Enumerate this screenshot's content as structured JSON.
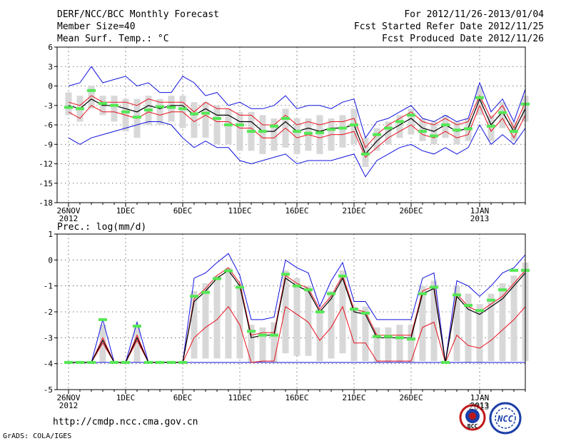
{
  "header": {
    "title": "DERF/NCC/BCC Monthly Forecast",
    "member_size": "Member Size=40",
    "variable": "Mean Surf. Temp.: °C",
    "forecast_period": "For 2012/11/26-2013/01/04",
    "started_refer": "Fcst Started Refer Date 2012/11/25",
    "produced": "Fcst Produced Date 2012/11/26"
  },
  "footer": {
    "url": "http://cmdp.ncc.cma.gov.cn",
    "grads": "GrADS: COLA/IGES",
    "logo_bcc": "BCC",
    "logo_ncc": "NCC",
    "logo_year_overlap": "2013"
  },
  "colors": {
    "median": "#000000",
    "ci": "#e8101c",
    "extreme": "#1010e0",
    "box": "#d8d8d8",
    "marker": "#54e854"
  },
  "chart_data": [
    {
      "type": "box-line",
      "title": "Mean Surf. Temp.: °C",
      "ylim": [
        -18,
        6
      ],
      "yticks": [
        6,
        3,
        0,
        -3,
        -6,
        -9,
        -12,
        -15,
        -18
      ],
      "xticks": [
        {
          "day": 0,
          "label": "26NOV",
          "sub": "2012"
        },
        {
          "day": 5,
          "label": "1DEC",
          "sub": ""
        },
        {
          "day": 10,
          "label": "6DEC",
          "sub": ""
        },
        {
          "day": 15,
          "label": "11DEC",
          "sub": ""
        },
        {
          "day": 20,
          "label": "16DEC",
          "sub": ""
        },
        {
          "day": 25,
          "label": "21DEC",
          "sub": ""
        },
        {
          "day": 30,
          "label": "26DEC",
          "sub": ""
        },
        {
          "day": 36,
          "label": "1JAN",
          "sub": "2013"
        }
      ],
      "days": 40,
      "median": [
        -3.0,
        -3.5,
        -2.0,
        -3.0,
        -3.0,
        -3.5,
        -4.0,
        -3.0,
        -3.5,
        -3.0,
        -3.0,
        -4.5,
        -3.5,
        -4.5,
        -4.5,
        -5.5,
        -5.5,
        -7.0,
        -7.0,
        -5.5,
        -7.0,
        -6.5,
        -7.0,
        -6.5,
        -6.5,
        -6.0,
        -10.5,
        -8.5,
        -7.0,
        -6.0,
        -5.0,
        -6.5,
        -7.0,
        -6.0,
        -7.0,
        -6.5,
        -2.0,
        -6.0,
        -4.0,
        -7.0,
        -3.5
      ],
      "ci_upper": [
        -2.5,
        -3.0,
        -1.5,
        -2.5,
        -2.5,
        -2.5,
        -3.0,
        -2.0,
        -2.5,
        -2.5,
        -2.5,
        -4.0,
        -2.5,
        -3.5,
        -3.5,
        -4.5,
        -4.5,
        -6.0,
        -6.0,
        -4.5,
        -6.0,
        -5.5,
        -6.0,
        -5.5,
        -5.5,
        -5.0,
        -9.5,
        -7.5,
        -6.0,
        -5.0,
        -4.0,
        -5.5,
        -6.0,
        -5.0,
        -6.0,
        -5.5,
        -1.5,
        -5.0,
        -3.0,
        -6.5,
        -2.5
      ],
      "ci_lower": [
        -4.0,
        -5.0,
        -3.0,
        -4.0,
        -4.0,
        -4.5,
        -5.0,
        -4.0,
        -4.5,
        -4.0,
        -4.0,
        -5.5,
        -4.5,
        -5.5,
        -5.5,
        -6.5,
        -6.5,
        -8.0,
        -8.0,
        -6.5,
        -8.0,
        -7.5,
        -8.0,
        -7.5,
        -7.5,
        -7.0,
        -11.0,
        -9.5,
        -8.0,
        -7.0,
        -6.0,
        -7.5,
        -8.0,
        -7.0,
        -8.0,
        -7.5,
        -3.0,
        -7.0,
        -5.0,
        -8.0,
        -4.5
      ],
      "max": [
        0,
        0.5,
        3.0,
        0.5,
        1.0,
        1.5,
        0,
        0.5,
        -1.0,
        -1.0,
        1.5,
        0.5,
        -1.5,
        -1.0,
        -3.0,
        -2.5,
        -3.5,
        -3.5,
        -3.0,
        -1.5,
        -3.5,
        -3.0,
        -3.0,
        -3.5,
        -2.5,
        -2.0,
        -8.0,
        -5.5,
        -5.0,
        -4.0,
        -3.0,
        -5.0,
        -5.5,
        -4.5,
        -5.5,
        -5.0,
        0.5,
        -4.0,
        -2.0,
        -5.5,
        -0.5
      ],
      "min": [
        -8.0,
        -9.0,
        -8.0,
        -7.5,
        -7.0,
        -6.5,
        -6.0,
        -5.5,
        -5.5,
        -6.0,
        -8.0,
        -9.5,
        -8.5,
        -9.5,
        -9.5,
        -11.5,
        -12.0,
        -11.5,
        -11.0,
        -10.5,
        -12.0,
        -11.5,
        -11.5,
        -11.5,
        -11.0,
        -10.5,
        -14.0,
        -11.5,
        -10.5,
        -9.5,
        -9.0,
        -10.0,
        -10.5,
        -9.5,
        -10.5,
        -9.5,
        -6.0,
        -9.0,
        -7.5,
        -9.0,
        -6.5
      ],
      "box_top": [
        -1.0,
        -1.5,
        0,
        -1.5,
        -1.5,
        -2.0,
        -2.0,
        -1.5,
        -2.0,
        -1.5,
        -1.5,
        -2.5,
        -2.5,
        -3.0,
        -3.5,
        -4.0,
        -4.0,
        -4.5,
        -5.0,
        -3.5,
        -5.0,
        -5.0,
        -4.5,
        -5.0,
        -4.5,
        -3.5,
        -8.0,
        -6.5,
        -5.5,
        -4.5,
        -3.5,
        -5.0,
        -5.5,
        -4.5,
        -5.5,
        -5.0,
        0,
        -4.5,
        -2.5,
        -5.5,
        -1.5
      ],
      "box_bottom": [
        -4.5,
        -5.5,
        -3.5,
        -4.5,
        -5.5,
        -7.0,
        -8.0,
        -6.0,
        -6.0,
        -5.5,
        -6.5,
        -8.0,
        -8.0,
        -9.0,
        -9.0,
        -10.0,
        -10.0,
        -10.5,
        -10.0,
        -9.5,
        -10.5,
        -10.0,
        -10.5,
        -10.0,
        -9.5,
        -9.0,
        -12.5,
        -10.0,
        -9.0,
        -8.0,
        -7.5,
        -8.5,
        -9.0,
        -8.0,
        -9.0,
        -8.5,
        -4.5,
        -8.5,
        -6.5,
        -8.5,
        -5.5
      ],
      "markers": [
        -3.3,
        -3.5,
        -0.7,
        -2.7,
        -3.0,
        -4.0,
        -4.8,
        -3.7,
        -3.2,
        -3.3,
        -3.5,
        -4.3,
        -4.2,
        -5.0,
        -6.0,
        -6.0,
        -7.0,
        -7.0,
        -6.2,
        -5.0,
        -7.0,
        -7.3,
        -7.2,
        -6.7,
        -6.5,
        -6.0,
        -10.5,
        -7.5,
        -6.5,
        -5.5,
        -4.5,
        -7.0,
        -7.7,
        -6.0,
        -6.8,
        -6.6,
        -1.8,
        -6.2,
        -4.1,
        -7.0,
        -2.8
      ]
    },
    {
      "type": "box-line",
      "title": "Prec.: log(mm/d)",
      "ylim": [
        -5,
        1
      ],
      "yticks": [
        1,
        0,
        -1,
        -2,
        -3,
        -4,
        -5
      ],
      "xticks": [
        {
          "day": 0,
          "label": "26NOV",
          "sub": "2012"
        },
        {
          "day": 5,
          "label": "1DEC",
          "sub": ""
        },
        {
          "day": 10,
          "label": "6DEC",
          "sub": ""
        },
        {
          "day": 15,
          "label": "11DEC",
          "sub": ""
        },
        {
          "day": 20,
          "label": "16DEC",
          "sub": ""
        },
        {
          "day": 25,
          "label": "21DEC",
          "sub": ""
        },
        {
          "day": 30,
          "label": "26DEC",
          "sub": ""
        },
        {
          "day": 36,
          "label": "1JAN",
          "sub": "2013"
        }
      ],
      "days": 40,
      "median": [
        -3.95,
        -3.95,
        -3.95,
        -3.1,
        -3.95,
        -3.95,
        -3.0,
        -3.95,
        -3.95,
        -3.95,
        -3.95,
        -1.6,
        -1.2,
        -0.7,
        -0.4,
        -1.0,
        -3.0,
        -2.9,
        -2.9,
        -0.7,
        -1.0,
        -1.2,
        -2.0,
        -1.5,
        -0.7,
        -2.0,
        -2.1,
        -3.0,
        -3.0,
        -3.0,
        -3.0,
        -1.3,
        -1.1,
        -3.95,
        -1.4,
        -1.9,
        -2.1,
        -1.8,
        -1.5,
        -1.0,
        -0.5
      ],
      "ci_upper": [
        -3.95,
        -3.95,
        -3.95,
        -3.0,
        -3.95,
        -3.95,
        -2.9,
        -3.95,
        -3.95,
        -3.95,
        -3.95,
        -1.5,
        -1.1,
        -0.6,
        -0.3,
        -0.9,
        -2.9,
        -2.8,
        -2.8,
        -0.6,
        -0.9,
        -1.1,
        -1.9,
        -1.4,
        -0.6,
        -1.9,
        -2.0,
        -2.9,
        -2.9,
        -2.9,
        -2.9,
        -1.2,
        -1.0,
        -3.95,
        -1.3,
        -1.8,
        -2.0,
        -1.7,
        -1.4,
        -0.9,
        -0.4
      ],
      "ci_lower": [
        -3.95,
        -3.95,
        -3.95,
        -3.2,
        -3.95,
        -3.95,
        -3.1,
        -3.95,
        -3.95,
        -3.95,
        -3.95,
        -3.0,
        -2.6,
        -2.3,
        -1.8,
        -2.5,
        -3.95,
        -3.9,
        -3.9,
        -1.8,
        -2.1,
        -2.4,
        -3.1,
        -2.6,
        -1.8,
        -3.2,
        -3.2,
        -3.9,
        -3.9,
        -3.9,
        -3.9,
        -2.6,
        -2.4,
        -3.95,
        -2.9,
        -3.3,
        -3.4,
        -3.1,
        -2.7,
        -2.3,
        -1.8
      ],
      "max": [
        -3.95,
        -3.95,
        -3.95,
        -2.3,
        -3.95,
        -3.95,
        -2.4,
        -3.95,
        -3.95,
        -3.95,
        -3.95,
        -0.7,
        -0.5,
        -0.1,
        0.25,
        -0.6,
        -2.3,
        -2.3,
        -2.2,
        0,
        -0.3,
        -0.5,
        -1.8,
        -0.8,
        -0.1,
        -1.6,
        -1.6,
        -2.3,
        -2.3,
        -2.3,
        -2.3,
        -0.7,
        -0.5,
        -3.95,
        -0.8,
        -1.0,
        -1.4,
        -1.0,
        -0.5,
        -0.3,
        0.2
      ],
      "min": [
        -3.95,
        -3.95,
        -3.95,
        -3.95,
        -3.95,
        -3.95,
        -3.95,
        -3.95,
        -3.95,
        -3.95,
        -3.95,
        -3.95,
        -3.95,
        -3.95,
        -3.95,
        -3.95,
        -3.95,
        -3.95,
        -3.95,
        -3.95,
        -3.95,
        -3.95,
        -3.95,
        -3.95,
        -3.95,
        -3.95,
        -3.95,
        -3.95,
        -3.95,
        -3.95,
        -3.95,
        -3.95,
        -3.95,
        -3.95,
        -3.95,
        -3.95,
        -3.95,
        -3.95,
        -3.95,
        -3.95,
        -3.95
      ],
      "box_top": [
        -3.95,
        -3.95,
        -3.95,
        -2.5,
        -3.95,
        -3.95,
        -2.6,
        -3.95,
        -3.95,
        -3.95,
        -3.95,
        -1.2,
        -0.9,
        -0.6,
        -0.3,
        -0.9,
        -2.5,
        -2.6,
        -2.4,
        -0.4,
        -0.7,
        -1.0,
        -1.9,
        -1.2,
        -0.4,
        -1.8,
        -1.8,
        -2.6,
        -2.6,
        -2.5,
        -2.5,
        -1.0,
        -0.8,
        -3.95,
        -1.0,
        -1.3,
        -1.7,
        -1.3,
        -0.9,
        -0.6,
        -0.1
      ],
      "box_bottom": [
        -3.95,
        -3.95,
        -3.95,
        -3.95,
        -3.95,
        -3.95,
        -3.95,
        -3.95,
        -3.95,
        -3.95,
        -3.95,
        -3.8,
        -3.8,
        -3.8,
        -3.8,
        -3.8,
        -3.95,
        -3.95,
        -3.95,
        -3.6,
        -3.7,
        -3.7,
        -3.9,
        -3.8,
        -3.6,
        -3.9,
        -3.9,
        -3.95,
        -3.95,
        -3.95,
        -3.95,
        -3.9,
        -3.9,
        -3.95,
        -3.9,
        -3.95,
        -3.95,
        -3.9,
        -3.9,
        -3.9,
        -3.9
      ],
      "markers": [
        -3.95,
        -3.95,
        -3.95,
        -2.3,
        -3.95,
        -3.95,
        -2.55,
        -3.95,
        -3.95,
        -3.95,
        -3.95,
        -1.4,
        -1.25,
        -0.72,
        -0.42,
        -1.05,
        -2.75,
        -2.9,
        -2.9,
        -0.55,
        -1.0,
        -1.15,
        -2.0,
        -1.3,
        -0.62,
        -1.9,
        -2.05,
        -2.95,
        -2.95,
        -3.0,
        -3.05,
        -1.3,
        -1.05,
        -3.95,
        -1.35,
        -1.75,
        -1.95,
        -1.55,
        -1.15,
        -0.4,
        -0.4
      ]
    }
  ]
}
